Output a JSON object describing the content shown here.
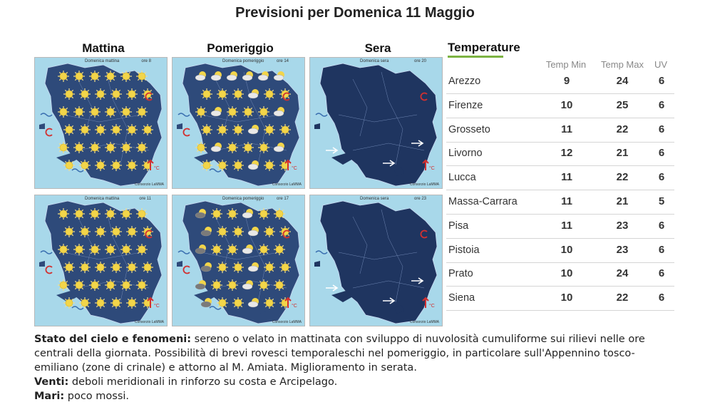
{
  "title": "Previsioni per Domenica 11 Maggio",
  "columns": [
    "Mattina",
    "Pomeriggio",
    "Sera"
  ],
  "maps": [
    {
      "caption": "Domenica mattina",
      "hour": "ore 8",
      "credit": "Consorzio LaMMA",
      "scene": "day-sun"
    },
    {
      "caption": "Domenica pomeriggio",
      "hour": "ore 14",
      "credit": "Consorzio LaMMA",
      "scene": "day-mixed"
    },
    {
      "caption": "Domenica sera",
      "hour": "ore 20",
      "credit": "Consorzio LaMMA",
      "scene": "night"
    },
    {
      "caption": "Domenica mattina",
      "hour": "ore 11",
      "credit": "Consorzio LaMMA",
      "scene": "day-sun"
    },
    {
      "caption": "Domenica pomeriggio",
      "hour": "ore 17",
      "credit": "Consorzio LaMMA",
      "scene": "day-storm"
    },
    {
      "caption": "Domenica sera",
      "hour": "ore 23",
      "credit": "Consorzio LaMMA",
      "scene": "night"
    }
  ],
  "temperature": {
    "heading": "Temperature",
    "headers": [
      "Temp Min",
      "Temp Max",
      "UV"
    ],
    "rows": [
      {
        "city": "Arezzo",
        "min": "9",
        "max": "24",
        "uv": "6"
      },
      {
        "city": "Firenze",
        "min": "10",
        "max": "25",
        "uv": "6"
      },
      {
        "city": "Grosseto",
        "min": "11",
        "max": "22",
        "uv": "6"
      },
      {
        "city": "Livorno",
        "min": "12",
        "max": "21",
        "uv": "6"
      },
      {
        "city": "Lucca",
        "min": "11",
        "max": "22",
        "uv": "6"
      },
      {
        "city": "Massa-Carrara",
        "min": "11",
        "max": "21",
        "uv": "5"
      },
      {
        "city": "Pisa",
        "min": "11",
        "max": "23",
        "uv": "6"
      },
      {
        "city": "Pistoia",
        "min": "10",
        "max": "23",
        "uv": "6"
      },
      {
        "city": "Prato",
        "min": "10",
        "max": "24",
        "uv": "6"
      },
      {
        "city": "Siena",
        "min": "10",
        "max": "22",
        "uv": "6"
      }
    ]
  },
  "description": {
    "sky_label": "Stato del cielo e fenomeni:",
    "sky_text": "sereno o velato in mattinata con sviluppo di nuvolosità cumuliforme sui rilievi nelle ore centrali della giornata. Possibilità di brevi rovesci temporaleschi nel pomeriggio, in particolare sull'Appennino tosco-emiliano (zone di crinale) e attorno al M. Amiata. Miglioramento in serata.",
    "winds_label": "Venti:",
    "winds_text": "deboli meridionali in rinforzo su costa e Arcipelago.",
    "seas_label": "Mari:",
    "seas_text": "poco mossi."
  },
  "colors": {
    "sea": "#a8d8ea",
    "land_day": "#2e4a7a",
    "land_night": "#1f3560",
    "accent": "#7cb342",
    "sun": "#f2d54a"
  }
}
